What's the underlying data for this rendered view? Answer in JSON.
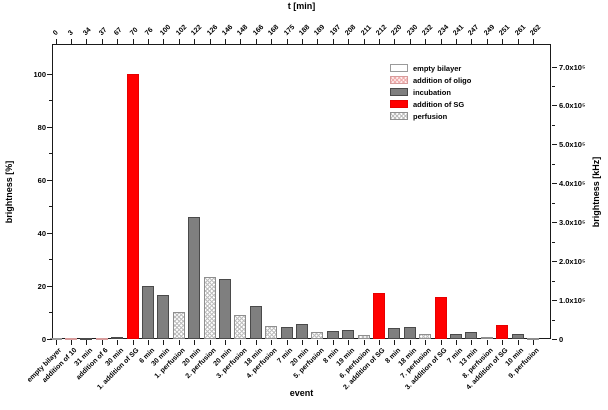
{
  "figure": {
    "top_axis_title": "t [min]",
    "x_axis_title": "event",
    "y_left_title": "brightness [%]",
    "y_right_title": "brightness [kHz]"
  },
  "legend": {
    "position": "upper-right-inside",
    "items": [
      {
        "key": "empty",
        "label": "empty bilayer"
      },
      {
        "key": "oligo",
        "label": "addition of oligo"
      },
      {
        "key": "incubation",
        "label": "incubation"
      },
      {
        "key": "sg",
        "label": "addition of SG"
      },
      {
        "key": "perfusion",
        "label": "perfusion"
      }
    ]
  },
  "chart_data": {
    "type": "bar",
    "title": "t [min]",
    "xlabel": "event",
    "ylabel_left": "brightness [%]",
    "ylabel_right": "brightness [kHz]",
    "gridlines": false,
    "categories": [
      "empty bilayer",
      "addition of 10",
      "31 min",
      "addition of 6",
      "30 min",
      "1. addition of SG",
      "6 min",
      "30 min",
      "1. perfusion",
      "20 min",
      "2. perfusion",
      "20 min",
      "3. perfusion",
      "18 min",
      "4. perfusion",
      "7 min",
      "20 min",
      "5. perfusion",
      "8 min",
      "19 min",
      "6. perfusion",
      "2. addition of SG",
      "8 min",
      "18 min",
      "7. perfusion",
      "3. addition of SG",
      "7 min",
      "13 min",
      "8. perfusion",
      "4. addition of SG",
      "10 min",
      "9. perfusion"
    ],
    "t_min": [
      "0",
      "3",
      "34",
      "37",
      "67",
      "70",
      "76",
      "100",
      "102",
      "122",
      "126",
      "146",
      "148",
      "166",
      "168",
      "175",
      "188",
      "189",
      "197",
      "208",
      "211",
      "212",
      "220",
      "230",
      "232",
      "234",
      "241",
      "247",
      "249",
      "251",
      "261",
      "262"
    ],
    "series": [
      {
        "name": "brightness [%]",
        "values": [
          0.3,
          0.4,
          0.5,
          0.4,
          0.7,
          100,
          20,
          16.5,
          10,
          46,
          23.5,
          22.5,
          9,
          12.5,
          5,
          4.5,
          5.5,
          2.5,
          3,
          3.5,
          1.5,
          17.5,
          4,
          4.5,
          2,
          16,
          2,
          2.5,
          0.6,
          5.2,
          2,
          0.4
        ]
      }
    ],
    "bar_styles": [
      "empty",
      "oligo",
      "incubation",
      "oligo",
      "incubation",
      "sg",
      "incubation",
      "incubation",
      "perfusion",
      "incubation",
      "perfusion",
      "incubation",
      "perfusion",
      "incubation",
      "perfusion",
      "incubation",
      "incubation",
      "perfusion",
      "incubation",
      "incubation",
      "perfusion",
      "sg",
      "incubation",
      "incubation",
      "perfusion",
      "sg",
      "incubation",
      "incubation",
      "perfusion",
      "sg",
      "incubation",
      "perfusion"
    ],
    "y_left": {
      "tick_values": [
        0,
        20,
        40,
        60,
        80,
        100
      ],
      "minor_values": [
        10,
        30,
        50,
        70,
        90
      ],
      "axis_max": 111.3,
      "ylim": [
        0,
        100
      ]
    },
    "y_right": {
      "tick_values": [
        0,
        100000,
        200000,
        300000,
        400000,
        500000,
        600000,
        700000
      ],
      "tick_labels": [
        "0",
        "1.0x10⁵",
        "2.0x10⁵",
        "3.0x10⁵",
        "4.0x10⁵",
        "5.0x10⁵",
        "6.0x10⁵",
        "7.0x10⁵"
      ],
      "minor_values": [
        50000,
        150000,
        250000,
        350000,
        450000,
        550000,
        650000
      ],
      "axis_max": 758000,
      "ylim": [
        0,
        700000
      ]
    },
    "colors": {
      "incubation": "#7f7f7f",
      "sg": "#ff0000",
      "perfusion_hatch": "#bdbdbd",
      "oligo_hatch": "#f0aeae",
      "empty": "#ffffff",
      "axis": "#1a1a1a"
    }
  }
}
